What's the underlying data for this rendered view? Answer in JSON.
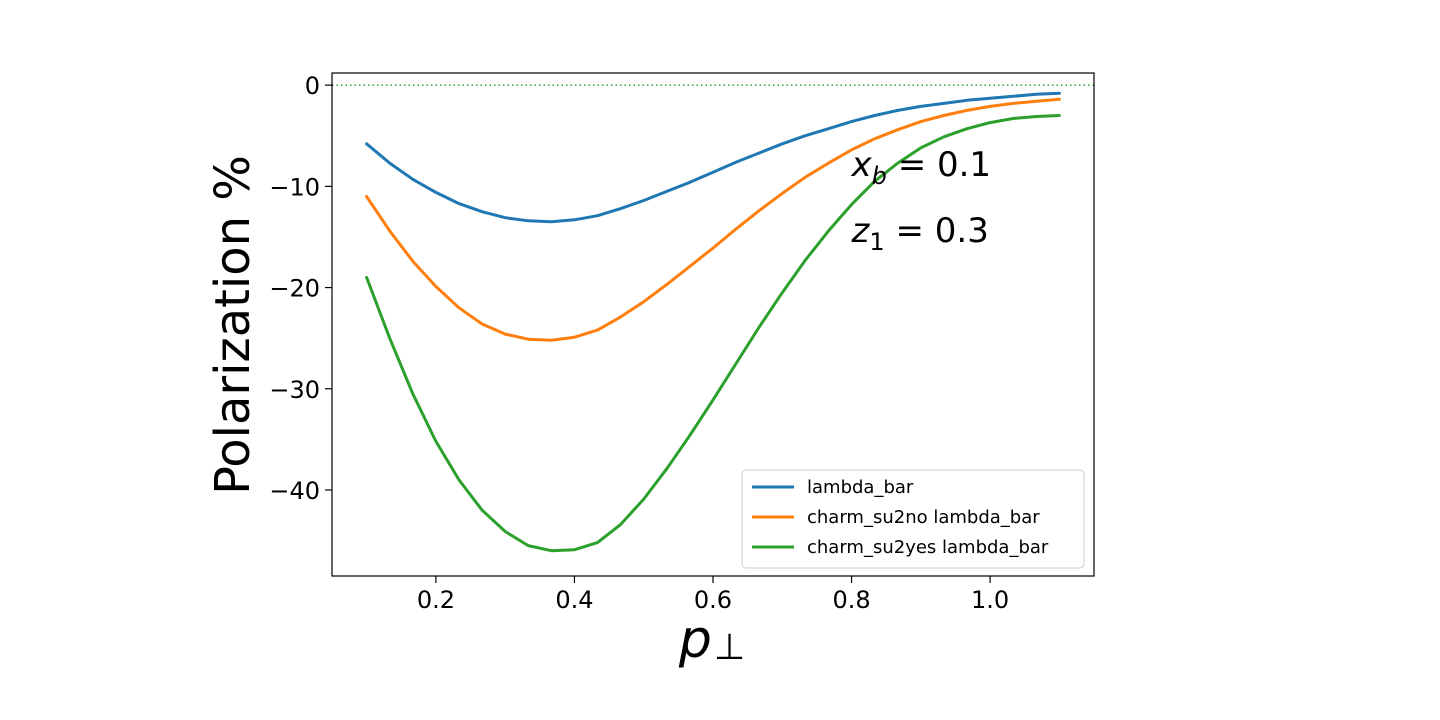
{
  "chart_data": {
    "type": "line",
    "title": "",
    "xlabel": "p",
    "xlabel_sub": "⊥",
    "ylabel": "Polarization %",
    "xlim": [
      0.05,
      1.15
    ],
    "ylim": [
      -48.5,
      1.2
    ],
    "xticks": [
      0.2,
      0.4,
      0.6,
      0.8,
      1.0
    ],
    "xtick_labels": [
      "0.2",
      "0.4",
      "0.6",
      "0.8",
      "1.0"
    ],
    "yticks": [
      0,
      -10,
      -20,
      -30,
      -40
    ],
    "ytick_labels": [
      "0",
      "−10",
      "−20",
      "−30",
      "−40"
    ],
    "grid": false,
    "legend_position": "lower-right",
    "reference_line": {
      "y": 0,
      "style": "dotted",
      "color": "#2ca02c"
    },
    "annotations": [
      {
        "main": "x",
        "sub": "b",
        "text": " = 0.1",
        "x": 0.8,
        "y": -9
      },
      {
        "main": "z",
        "sub": "1",
        "text": " = 0.3",
        "x": 0.8,
        "y": -15.5
      }
    ],
    "x": [
      0.1,
      0.1333,
      0.1667,
      0.2,
      0.2333,
      0.2667,
      0.3,
      0.3333,
      0.3667,
      0.4,
      0.4333,
      0.4667,
      0.5,
      0.5333,
      0.5667,
      0.6,
      0.6333,
      0.6667,
      0.7,
      0.7333,
      0.7667,
      0.8,
      0.8333,
      0.8667,
      0.9,
      0.9333,
      0.9667,
      1.0,
      1.0333,
      1.0667,
      1.1
    ],
    "series": [
      {
        "name": "lambda_bar",
        "color": "#1f77b4",
        "values": [
          -5.8,
          -7.7,
          -9.3,
          -10.6,
          -11.7,
          -12.5,
          -13.1,
          -13.4,
          -13.5,
          -13.3,
          -12.9,
          -12.2,
          -11.4,
          -10.5,
          -9.6,
          -8.6,
          -7.6,
          -6.7,
          -5.8,
          -5.0,
          -4.3,
          -3.6,
          -3.0,
          -2.5,
          -2.1,
          -1.8,
          -1.5,
          -1.3,
          -1.1,
          -0.9,
          -0.8
        ]
      },
      {
        "name": "charm_su2no lambda_bar",
        "color": "#ff7f0e",
        "values": [
          -11.0,
          -14.4,
          -17.4,
          -19.9,
          -22.0,
          -23.6,
          -24.6,
          -25.1,
          -25.2,
          -24.9,
          -24.2,
          -22.9,
          -21.4,
          -19.7,
          -17.9,
          -16.1,
          -14.2,
          -12.4,
          -10.7,
          -9.1,
          -7.7,
          -6.4,
          -5.3,
          -4.4,
          -3.6,
          -3.0,
          -2.5,
          -2.1,
          -1.8,
          -1.6,
          -1.4
        ]
      },
      {
        "name": "charm_su2yes lambda_bar",
        "color": "#2ca02c",
        "values": [
          -19.0,
          -25.0,
          -30.5,
          -35.2,
          -39.0,
          -42.0,
          -44.1,
          -45.5,
          -46.0,
          -45.9,
          -45.2,
          -43.4,
          -40.9,
          -37.9,
          -34.6,
          -31.1,
          -27.5,
          -23.9,
          -20.5,
          -17.3,
          -14.4,
          -11.8,
          -9.5,
          -7.7,
          -6.2,
          -5.1,
          -4.3,
          -3.7,
          -3.3,
          -3.1,
          -3.0
        ]
      }
    ]
  }
}
